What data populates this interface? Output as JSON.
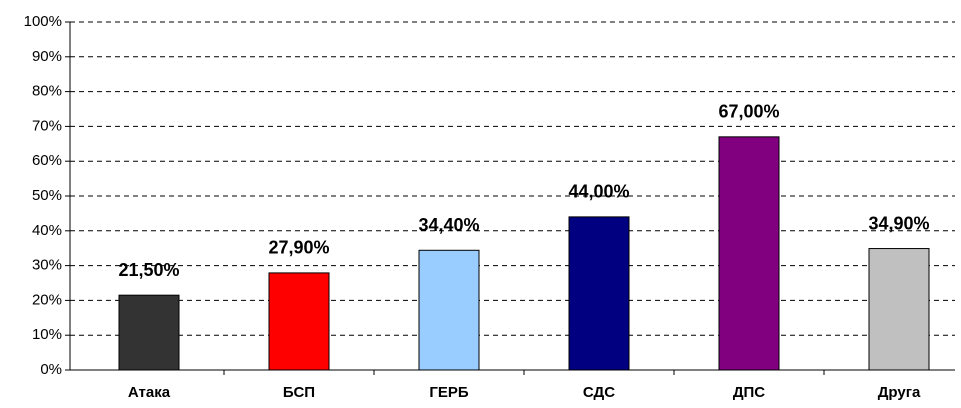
{
  "chart_data": {
    "type": "bar",
    "categories": [
      "Атака",
      "БСП",
      "ГЕРБ",
      "СДС",
      "ДПС",
      "Друга"
    ],
    "values": [
      21.5,
      27.9,
      34.4,
      44,
      67,
      34.9
    ],
    "value_labels": [
      "21,50%",
      "27,90%",
      "34,40%",
      "44,00%",
      "67,00%",
      "34,90%"
    ],
    "colors": [
      "#333333",
      "#ff0000",
      "#99ccff",
      "#000080",
      "#800080",
      "#c0c0c0"
    ],
    "ylim": [
      0,
      100
    ],
    "yticks": [
      {
        "value": 0,
        "label": "0%"
      },
      {
        "value": 10,
        "label": "10%"
      },
      {
        "value": 20,
        "label": "20%"
      },
      {
        "value": 30,
        "label": "30%"
      },
      {
        "value": 40,
        "label": "40%"
      },
      {
        "value": 50,
        "label": "50%"
      },
      {
        "value": 60,
        "label": "60%"
      },
      {
        "value": 70,
        "label": "70%"
      },
      {
        "value": 80,
        "label": "80%"
      },
      {
        "value": 90,
        "label": "90%"
      },
      {
        "value": 100,
        "label": "100%"
      }
    ],
    "grid": true
  }
}
